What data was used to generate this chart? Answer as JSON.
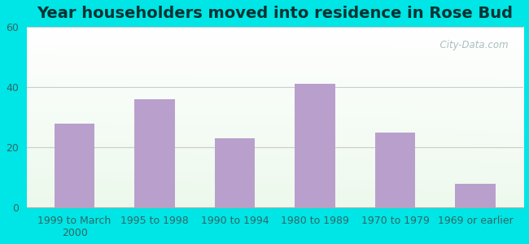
{
  "title": "Year householders moved into residence in Rose Bud",
  "categories": [
    "1999 to March\n2000",
    "1995 to 1998",
    "1990 to 1994",
    "1980 to 1989",
    "1970 to 1979",
    "1969 or earlier"
  ],
  "values": [
    28,
    36,
    23,
    41,
    25,
    8
  ],
  "bar_color": "#b9a0cc",
  "ylim": [
    0,
    60
  ],
  "yticks": [
    0,
    20,
    40,
    60
  ],
  "background_outer": "#00e5e5",
  "grid_color": "#cccccc",
  "title_fontsize": 14,
  "title_color": "#003333",
  "tick_fontsize": 9,
  "tick_color": "#336666",
  "watermark_text": "  City-Data.com",
  "watermark_color": "#a0b8b8"
}
